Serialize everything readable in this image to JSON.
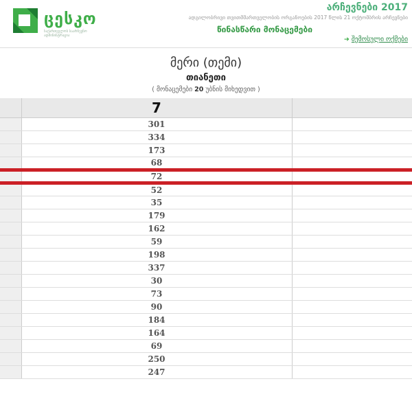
{
  "header": {
    "logo_title": "ცესკო",
    "logo_subtitle": "საქართველოს საარჩევნო ადმინისტრაცია",
    "election_title": "არჩევნები 2017",
    "election_subtitle": "ადგილობრივი თვითმმართველობის ორგანოების 2017 წლის 21 ოქტომბრის არჩევნები",
    "preliminary_label": "წინასწარი მონაცემები",
    "protocols_link_label": "შემოსული ოქმები",
    "protocols_link_arrow": "➜"
  },
  "page": {
    "title": "მერი (თემი)",
    "municipality": "თიანეთი",
    "note_prefix": "( მონაცემები ",
    "note_count": "20",
    "note_suffix": " უბნის მიხედვით )"
  },
  "table": {
    "party_number_header": "7",
    "rows": [
      301,
      334,
      173,
      68,
      72,
      52,
      35,
      179,
      162,
      59,
      198,
      337,
      30,
      73,
      90,
      184,
      164,
      69,
      250,
      247
    ],
    "highlighted_row_index": 4
  },
  "colors": {
    "brand_green": "#3fae49",
    "accent_green": "#4caf7a",
    "link_green": "#2e8b4a",
    "highlight_red": "#cb2026",
    "header_gray": "#e9e9e9"
  }
}
